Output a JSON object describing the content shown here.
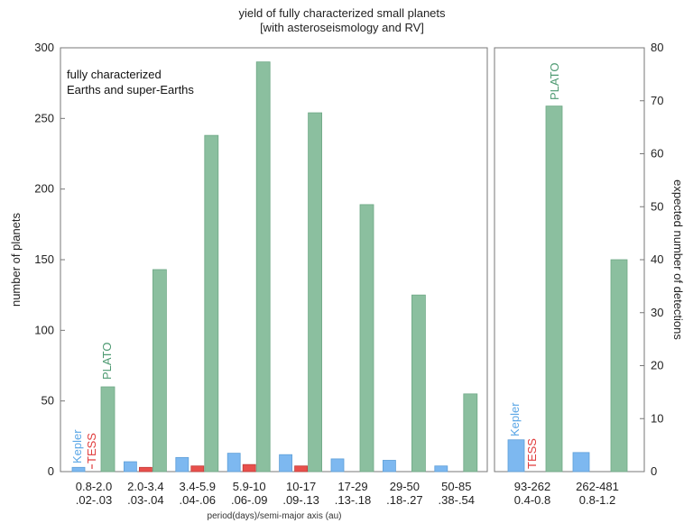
{
  "chart_data": {
    "type": "bar",
    "title": [
      "yield of fully characterized small planets",
      "[with asteroseismology and RV]"
    ],
    "ylabel_left": "number of planets",
    "ylabel_right": "expected number of detections",
    "xlabel": "period(days)/semi-major axis (au)",
    "annotation": [
      "fully characterized",
      "Earths and super-Earths"
    ],
    "legend_labels": {
      "kepler": "Kepler",
      "tess": "TESS",
      "plato": "PLATO"
    },
    "colors": {
      "kepler": "#7db8f0",
      "tess": "#e8504c",
      "plato": "#8bbf9f",
      "kepler_text": "#5aa6e6",
      "tess_text": "#e03c3c",
      "plato_text": "#4e9a72"
    },
    "left_panel": {
      "ylim": [
        0,
        300
      ],
      "yticks": [
        "0",
        "50",
        "100",
        "150",
        "200",
        "250",
        "300"
      ],
      "categories": [
        [
          "0.8-2.0",
          ".02-.03"
        ],
        [
          "2.0-3.4",
          ".03-.04"
        ],
        [
          "3.4-5.9",
          ".04-.06"
        ],
        [
          "5.9-10",
          ".06-.09"
        ],
        [
          "10-17",
          ".09-.13"
        ],
        [
          "17-29",
          ".13-.18"
        ],
        [
          "29-50",
          ".18-.27"
        ],
        [
          "50-85",
          ".38-.54"
        ]
      ],
      "series": [
        {
          "name": "Kepler",
          "values": [
            3,
            7,
            10,
            13,
            12,
            9,
            8,
            4
          ]
        },
        {
          "name": "TESS",
          "values": [
            0,
            3,
            4,
            5,
            4,
            0,
            0,
            0
          ]
        },
        {
          "name": "PLATO",
          "values": [
            60,
            143,
            238,
            290,
            254,
            189,
            125,
            55
          ]
        }
      ]
    },
    "right_panel": {
      "ylim": [
        0,
        80
      ],
      "yticks": [
        "0",
        "10",
        "20",
        "30",
        "40",
        "50",
        "60",
        "70",
        "80"
      ],
      "categories": [
        [
          "93-262",
          "0.4-0.8"
        ],
        [
          "262-481",
          "0.8-1.2"
        ]
      ],
      "series": [
        {
          "name": "Kepler",
          "values": [
            6,
            3.6
          ]
        },
        {
          "name": "TESS",
          "values": [
            0,
            0
          ]
        },
        {
          "name": "PLATO",
          "values": [
            69,
            40
          ]
        }
      ]
    }
  }
}
